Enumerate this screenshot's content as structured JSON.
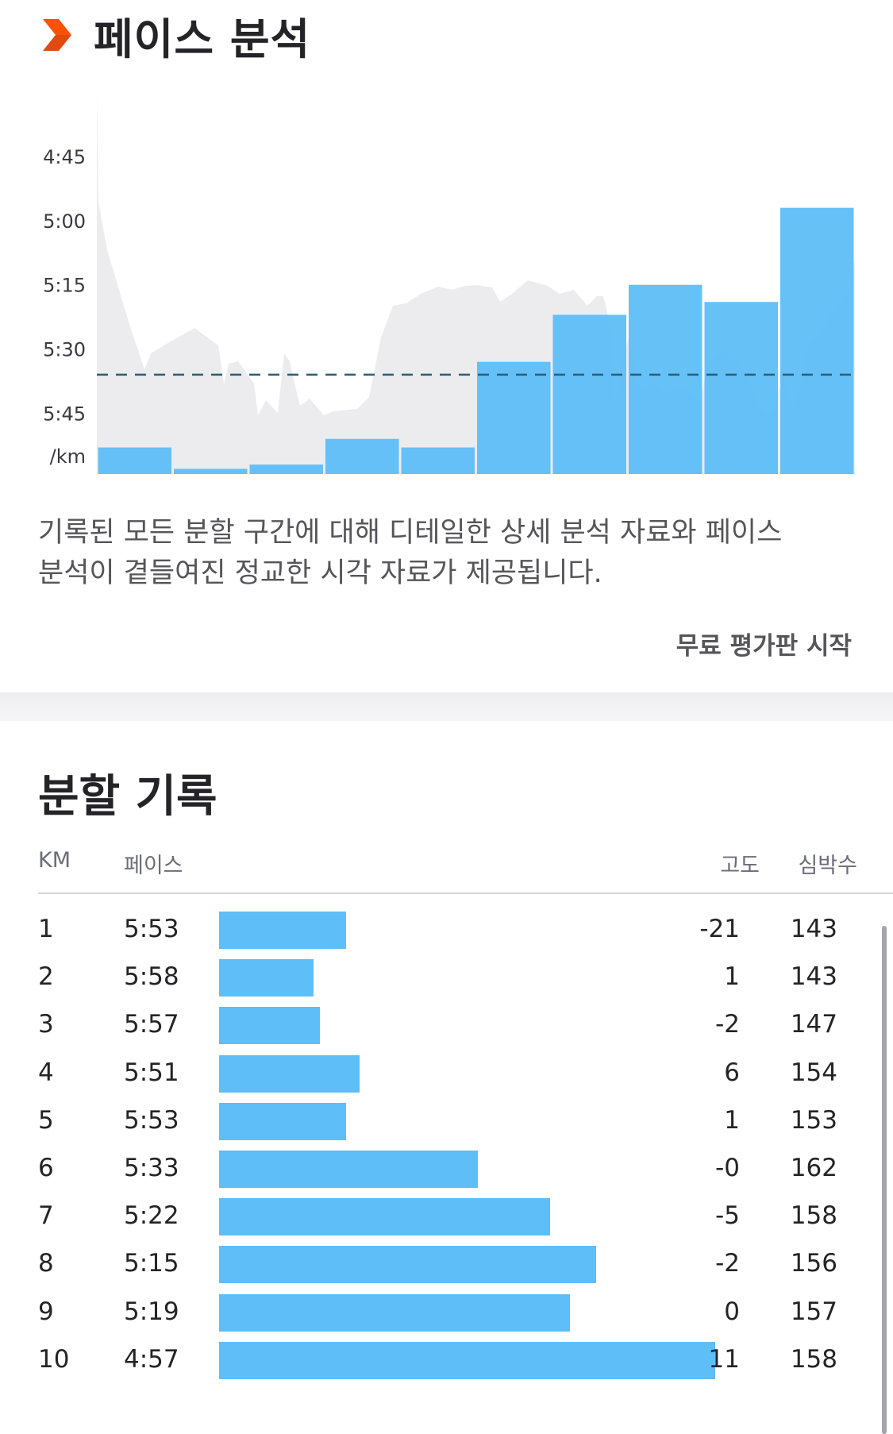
{
  "pace_section": {
    "title": "페이스 분석",
    "description_line1": "기록된 모든 분할 구간에 대해 디테일한 상세 분석 자료와 페이스",
    "description_line2": "분석이 곁들여진 정교한 시각 자료가 제공됩니다.",
    "trial_link": "무료 평가판 시작",
    "chevron_icon": "chevron-right-icon",
    "accent_color": "#fc5200"
  },
  "chart_data": {
    "type": "bar",
    "y_tick_labels": [
      "4:45",
      "5:00",
      "5:15",
      "5:30",
      "5:45"
    ],
    "y_unit_label": "/km",
    "y_axis_inverted": true,
    "ylim_seconds_per_km": [
      285,
      360
    ],
    "categories": [
      "1",
      "2",
      "3",
      "4",
      "5",
      "6",
      "7",
      "8",
      "9",
      "10"
    ],
    "values_pace": [
      "5:53",
      "5:58",
      "5:57",
      "5:51",
      "5:53",
      "5:33",
      "5:22",
      "5:15",
      "5:19",
      "4:57"
    ],
    "values_seconds_per_km": [
      353,
      358,
      357,
      351,
      353,
      333,
      322,
      315,
      319,
      297
    ],
    "average_line_seconds_per_km": 336,
    "grid": false,
    "bar_color": "#5ebef7",
    "background_area_color": "#ececee"
  },
  "splits": {
    "title": "분할 기록",
    "headers": {
      "km": "KM",
      "pace": "페이스",
      "elevation": "고도",
      "heart_rate": "심박수"
    },
    "rows": [
      {
        "km": "1",
        "pace": "5:53",
        "pace_sec": 353,
        "elevation": "-21",
        "heart_rate": "143"
      },
      {
        "km": "2",
        "pace": "5:58",
        "pace_sec": 358,
        "elevation": "1",
        "heart_rate": "143"
      },
      {
        "km": "3",
        "pace": "5:57",
        "pace_sec": 357,
        "elevation": "-2",
        "heart_rate": "147"
      },
      {
        "km": "4",
        "pace": "5:51",
        "pace_sec": 351,
        "elevation": "6",
        "heart_rate": "154"
      },
      {
        "km": "5",
        "pace": "5:53",
        "pace_sec": 353,
        "elevation": "1",
        "heart_rate": "153"
      },
      {
        "km": "6",
        "pace": "5:33",
        "pace_sec": 333,
        "elevation": "-0",
        "heart_rate": "162"
      },
      {
        "km": "7",
        "pace": "5:22",
        "pace_sec": 322,
        "elevation": "-5",
        "heart_rate": "158"
      },
      {
        "km": "8",
        "pace": "5:15",
        "pace_sec": 315,
        "elevation": "-2",
        "heart_rate": "156"
      },
      {
        "km": "9",
        "pace": "5:19",
        "pace_sec": 319,
        "elevation": "0",
        "heart_rate": "157"
      },
      {
        "km": "10",
        "pace": "4:57",
        "pace_sec": 297,
        "elevation": "11",
        "heart_rate": "158"
      }
    ]
  }
}
